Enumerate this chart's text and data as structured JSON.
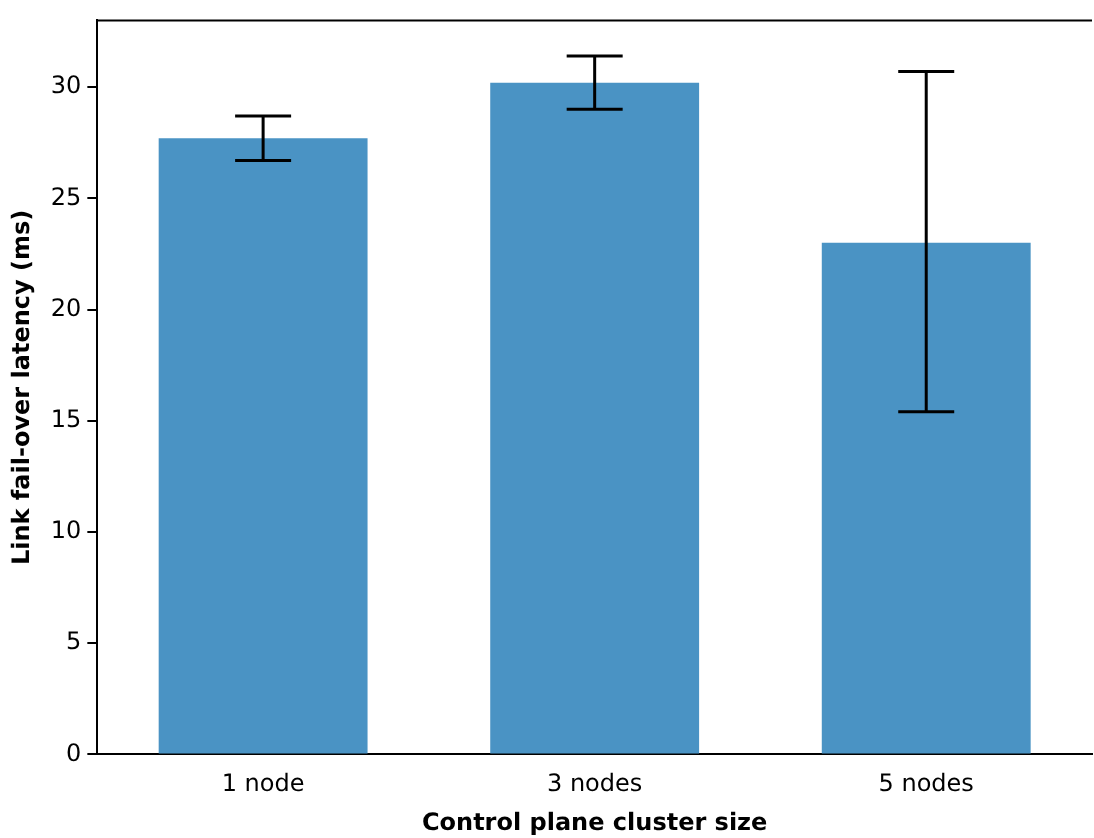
{
  "chart_data": {
    "type": "bar",
    "xlabel": "Control plane cluster size",
    "ylabel": "Link fail-over latency (ms)",
    "categories": [
      "1 node",
      "3 nodes",
      "5 nodes"
    ],
    "values": [
      27.7,
      30.2,
      23.0
    ],
    "errors": [
      [
        26.7,
        28.7
      ],
      [
        29.0,
        31.4
      ],
      [
        15.4,
        30.7
      ]
    ],
    "color": "#4a93c4",
    "ylim": [
      0,
      33
    ],
    "yticks": [
      0,
      5,
      10,
      15,
      20,
      25,
      30
    ],
    "grid": false,
    "legend": false
  }
}
